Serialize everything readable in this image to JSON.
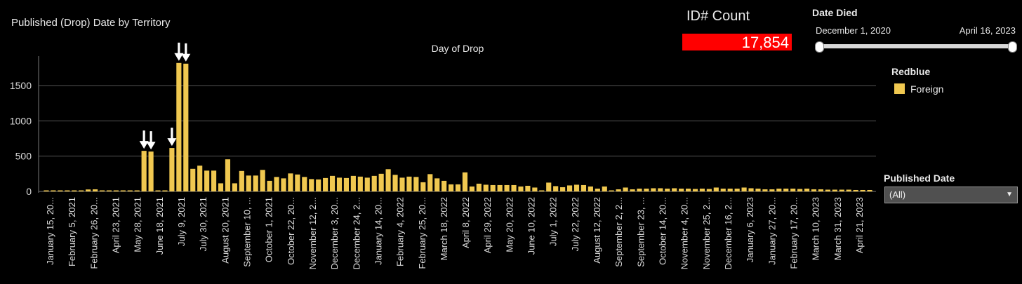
{
  "header": {
    "title": "Published (Drop) Date by Territory"
  },
  "id_count": {
    "label": "ID# Count",
    "value": "17,854"
  },
  "date_filter": {
    "title": "Date Died",
    "start": "December 1, 2020",
    "end": "April 16, 2023"
  },
  "legend": {
    "title": "Redblue",
    "items": [
      {
        "label": "Foreign",
        "color": "#f0c850"
      }
    ]
  },
  "published_date_filter": {
    "title": "Published Date",
    "value": "(All)"
  },
  "colors": {
    "bar": "#f0c850",
    "background": "#000000",
    "gridline": "#555555",
    "id_count_bg": "#ff0000"
  },
  "chart_data": {
    "type": "bar",
    "title": "Day of Drop",
    "ylim": [
      0,
      1900
    ],
    "yticks": [
      0,
      500,
      1000,
      1500
    ],
    "grid": true,
    "x_tick_labels": [
      "January 15, 20...",
      "February 5, 2021",
      "February 26, 20...",
      "April 23, 2021",
      "May 28, 2021",
      "June 18, 2021",
      "July 9, 2021",
      "July 30, 2021",
      "August 20, 2021",
      "September 10, ...",
      "October 1, 2021",
      "October 22, 20...",
      "November 12, 2...",
      "December 3, 20...",
      "December 24, 2...",
      "January 14, 20...",
      "February 4, 2022",
      "February 25, 20...",
      "March 18, 2022",
      "April 8, 2022",
      "April 29, 2022",
      "May 20, 2022",
      "June 10, 2022",
      "July 1, 2022",
      "July 22, 2022",
      "August 12, 2022",
      "September 2, 2...",
      "September 23, ...",
      "October 14, 20...",
      "November 4, 20...",
      "November 25, 2...",
      "December 16, 2...",
      "January 6, 2023",
      "January 27, 20...",
      "February 17, 20...",
      "March 10, 2023",
      "March 31, 2023",
      "April 21, 2023"
    ],
    "values": [
      8,
      15,
      5,
      0,
      0,
      0,
      28,
      30,
      0,
      0,
      0,
      0,
      0,
      0,
      575,
      565,
      0,
      15,
      615,
      1820,
      1810,
      320,
      365,
      295,
      295,
      115,
      455,
      115,
      290,
      225,
      225,
      305,
      150,
      205,
      185,
      255,
      240,
      205,
      175,
      170,
      190,
      220,
      195,
      190,
      220,
      210,
      195,
      220,
      250,
      315,
      235,
      195,
      210,
      205,
      130,
      245,
      185,
      150,
      100,
      100,
      270,
      70,
      110,
      95,
      90,
      90,
      90,
      90,
      70,
      80,
      55,
      15,
      125,
      75,
      60,
      85,
      95,
      90,
      70,
      40,
      70,
      15,
      30,
      55,
      30,
      40,
      40,
      45,
      45,
      40,
      45,
      40,
      40,
      35,
      40,
      35,
      55,
      40,
      40,
      40,
      55,
      45,
      40,
      30,
      30,
      40,
      40,
      40,
      35,
      40,
      30,
      30,
      25,
      25,
      25,
      25,
      20,
      20,
      20
    ],
    "arrow_bar_indices": [
      14,
      15,
      18,
      19,
      20
    ]
  }
}
